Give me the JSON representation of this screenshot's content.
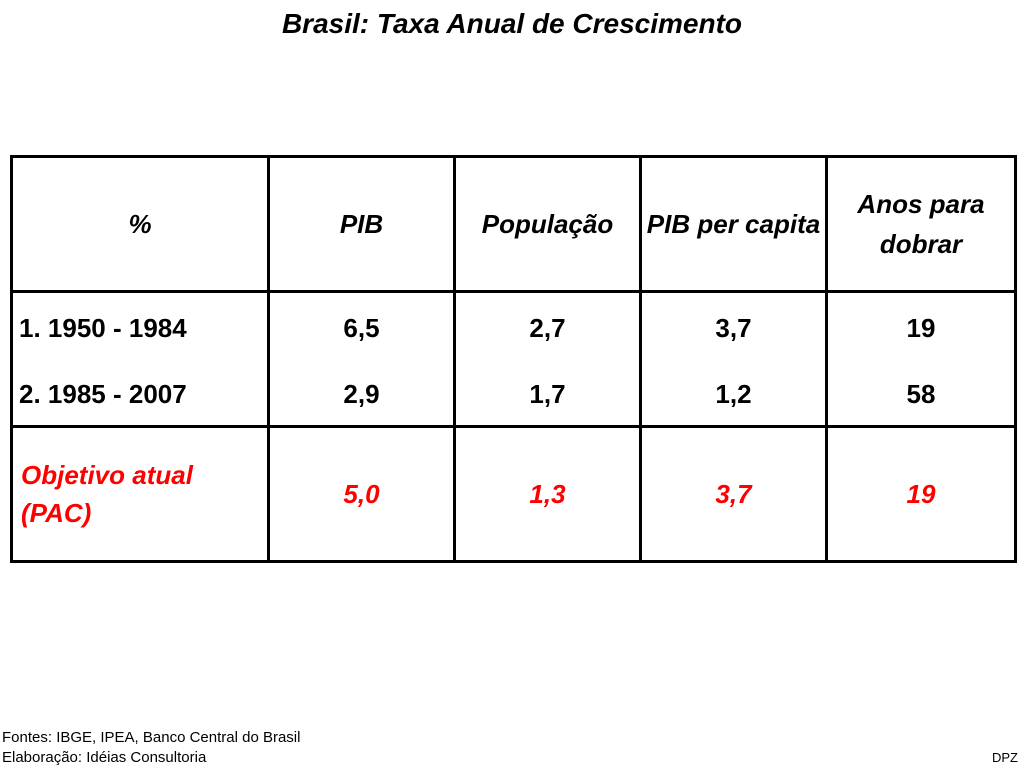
{
  "title": "Brasil: Taxa Anual de Crescimento",
  "table": {
    "headers": [
      "%",
      "PIB",
      "População",
      "PIB per capita",
      "Anos para dobrar"
    ],
    "rows": [
      {
        "label": "1. 1950 - 1984",
        "pib": "6,5",
        "populacao": "2,7",
        "pib_per_capita": "3,7",
        "anos_para_dobrar": "19"
      },
      {
        "label": "2. 1985 - 2007",
        "pib": "2,9",
        "populacao": "1,7",
        "pib_per_capita": "1,2",
        "anos_para_dobrar": "58"
      }
    ],
    "goal_row": {
      "label": "Objetivo atual (PAC)",
      "pib": "5,0",
      "populacao": "1,3",
      "pib_per_capita": "3,7",
      "anos_para_dobrar": "19"
    }
  },
  "footer": {
    "sources": "Fontes: IBGE, IPEA, Banco Central do Brasil",
    "elaboration": "Elaboração: Idéias Consultoria",
    "credit": "DPZ"
  },
  "colors": {
    "text": "#000000",
    "highlight": "#ff0000",
    "background": "#ffffff"
  }
}
